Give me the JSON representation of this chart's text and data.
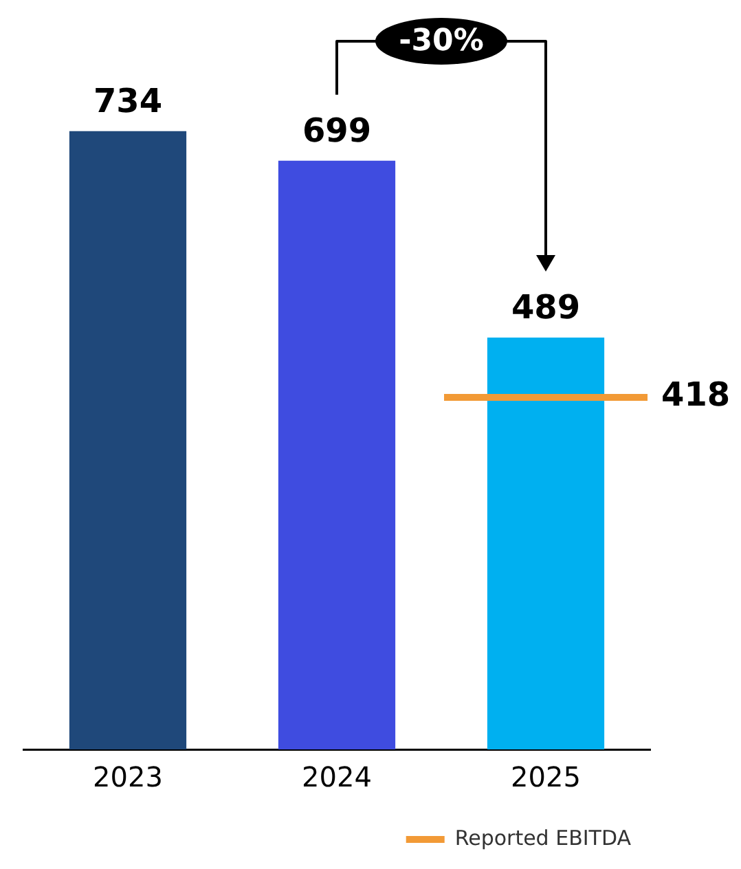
{
  "chart_data": {
    "type": "bar",
    "categories": [
      "2023",
      "2024",
      "2025"
    ],
    "values": [
      734,
      699,
      489
    ],
    "colors": [
      "#1f487a",
      "#3f4ce0",
      "#00b0f0"
    ],
    "ref_lines": [
      {
        "axis": "y",
        "value": 418,
        "label": "Reported EBITDA",
        "color": "#f29a36"
      }
    ],
    "data_labels": true,
    "annotations": [
      "-30%",
      "418"
    ],
    "legend": "bottom right",
    "grid": false
  }
}
